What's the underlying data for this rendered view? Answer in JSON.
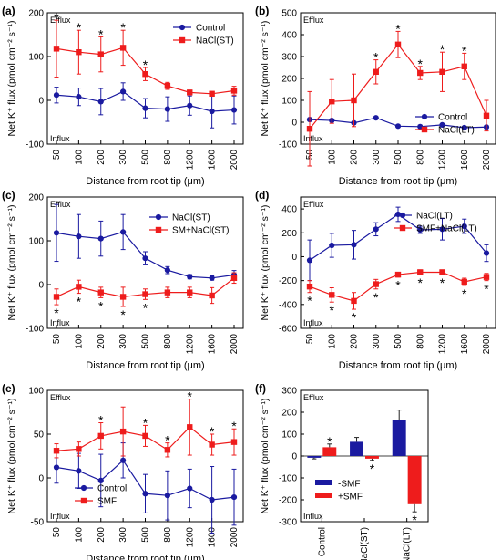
{
  "figure_title": "",
  "colors": {
    "blue": "#1a1aa0",
    "red": "#ee1c1c",
    "axis": "#000000"
  },
  "chart_data": [
    {
      "id": "a",
      "type": "line",
      "panel_label": "(a)",
      "xlabel": "Distance from root tip (μm)",
      "ylabel": "Net K⁺ flux (pmol cm⁻² s⁻¹)",
      "categories": [
        "50",
        "100",
        "200",
        "300",
        "500",
        "800",
        "1200",
        "1600",
        "2000"
      ],
      "ylim": [
        -100,
        200
      ],
      "yticks": [
        -100,
        0,
        100,
        200
      ],
      "top_note": "Efflux",
      "bottom_note": "Influx",
      "legend_position": "top-right",
      "series": [
        {
          "name": "Control",
          "color": "#1a1aa0",
          "marker": "circle",
          "values": [
            12,
            8,
            -3,
            20,
            -18,
            -20,
            -12,
            -25,
            -22
          ],
          "errors": [
            18,
            20,
            30,
            20,
            22,
            28,
            22,
            38,
            32
          ],
          "stars": [
            false,
            false,
            false,
            false,
            false,
            false,
            false,
            false,
            false
          ]
        },
        {
          "name": "NaCl(ST)",
          "color": "#ee1c1c",
          "marker": "square",
          "values": [
            118,
            110,
            105,
            120,
            60,
            33,
            18,
            15,
            22
          ],
          "errors": [
            65,
            50,
            40,
            40,
            15,
            8,
            5,
            5,
            10
          ],
          "stars": [
            true,
            true,
            true,
            true,
            true,
            false,
            false,
            false,
            false
          ]
        }
      ]
    },
    {
      "id": "b",
      "type": "line",
      "panel_label": "(b)",
      "xlabel": "Distance from root tip (μm)",
      "ylabel": "Net K⁺ flux (pmol cm⁻² s⁻¹)",
      "categories": [
        "50",
        "100",
        "200",
        "300",
        "500",
        "800",
        "1200",
        "1600",
        "2000"
      ],
      "ylim": [
        -100,
        500
      ],
      "yticks": [
        -100,
        0,
        100,
        200,
        300,
        400,
        500
      ],
      "top_note": "Efflux",
      "bottom_note": "Influx",
      "legend_position": "bottom-right",
      "series": [
        {
          "name": "Control",
          "color": "#1a1aa0",
          "marker": "circle",
          "values": [
            12,
            8,
            -3,
            20,
            -18,
            -20,
            -12,
            -25,
            -22
          ],
          "errors": [
            0,
            0,
            0,
            0,
            0,
            0,
            0,
            0,
            0
          ],
          "stars": [
            false,
            false,
            false,
            false,
            false,
            false,
            false,
            false,
            false
          ]
        },
        {
          "name": "NaCl(LT)",
          "color": "#ee1c1c",
          "marker": "square",
          "values": [
            -30,
            95,
            100,
            230,
            355,
            225,
            230,
            255,
            30
          ],
          "errors": [
            170,
            100,
            120,
            55,
            60,
            30,
            90,
            60,
            70
          ],
          "stars": [
            false,
            false,
            false,
            true,
            true,
            true,
            true,
            true,
            false
          ]
        }
      ]
    },
    {
      "id": "c",
      "type": "line",
      "panel_label": "(c)",
      "xlabel": "Distance from root tip (μm)",
      "ylabel": "Net K⁺ flux (pmol cm⁻² s⁻¹)",
      "categories": [
        "50",
        "100",
        "200",
        "300",
        "500",
        "800",
        "1200",
        "1600",
        "2000"
      ],
      "ylim": [
        -100,
        200
      ],
      "yticks": [
        -100,
        0,
        100,
        200
      ],
      "top_note": "Efflux",
      "bottom_note": "Influx",
      "legend_position": "top-right",
      "series": [
        {
          "name": "NaCl(ST)",
          "color": "#1a1aa0",
          "marker": "circle",
          "values": [
            118,
            110,
            105,
            120,
            60,
            33,
            18,
            15,
            22
          ],
          "errors": [
            65,
            50,
            40,
            40,
            15,
            8,
            5,
            5,
            10
          ],
          "stars": [
            false,
            false,
            false,
            false,
            false,
            false,
            false,
            false,
            false
          ]
        },
        {
          "name": "SM+NaCl(ST)",
          "color": "#ee1c1c",
          "marker": "square",
          "values": [
            -28,
            -5,
            -18,
            -28,
            -22,
            -18,
            -18,
            -25,
            15
          ],
          "errors": [
            18,
            15,
            12,
            22,
            12,
            12,
            12,
            18,
            12
          ],
          "stars": [
            true,
            true,
            true,
            true,
            true,
            false,
            false,
            false,
            false
          ]
        }
      ]
    },
    {
      "id": "d",
      "type": "line",
      "panel_label": "(d)",
      "xlabel": "Distance from root tip (μm)",
      "ylabel": "Net K⁺ flux (pmol cm⁻² s⁻¹)",
      "categories": [
        "50",
        "100",
        "200",
        "300",
        "500",
        "800",
        "1200",
        "1600",
        "2000"
      ],
      "ylim": [
        -600,
        500
      ],
      "yticks": [
        -600,
        -400,
        -200,
        0,
        200,
        400
      ],
      "top_note": "Efflux",
      "bottom_note": "Influx",
      "legend_position": "top-right",
      "series": [
        {
          "name": "NaCl(LT)",
          "color": "#1a1aa0",
          "marker": "circle",
          "values": [
            -30,
            95,
            100,
            230,
            355,
            225,
            230,
            255,
            30
          ],
          "errors": [
            170,
            100,
            120,
            55,
            60,
            30,
            90,
            60,
            70
          ],
          "stars": [
            false,
            false,
            false,
            false,
            false,
            false,
            false,
            false,
            false
          ]
        },
        {
          "name": "SMF+NaCl(LT)",
          "color": "#ee1c1c",
          "marker": "square",
          "values": [
            -250,
            -320,
            -370,
            -230,
            -150,
            -130,
            -130,
            -210,
            -170
          ],
          "errors": [
            50,
            60,
            70,
            40,
            20,
            20,
            20,
            30,
            30
          ],
          "stars": [
            true,
            true,
            true,
            true,
            true,
            true,
            true,
            true,
            true
          ]
        }
      ]
    },
    {
      "id": "e",
      "type": "line",
      "panel_label": "(e)",
      "xlabel": "Distance from root tip (μm)",
      "ylabel": "Net K⁺ flux (pmol cm⁻² s⁻¹)",
      "categories": [
        "50",
        "100",
        "200",
        "300",
        "500",
        "800",
        "1200",
        "1600",
        "2000"
      ],
      "ylim": [
        -50,
        100
      ],
      "yticks": [
        -50,
        0,
        50,
        100
      ],
      "top_note": "Efflux",
      "bottom_note": "Influx",
      "legend_position": "bottom-left",
      "series": [
        {
          "name": "Control",
          "color": "#1a1aa0",
          "marker": "circle",
          "values": [
            12,
            8,
            -3,
            20,
            -18,
            -20,
            -12,
            -25,
            -22
          ],
          "errors": [
            18,
            20,
            30,
            20,
            22,
            28,
            22,
            38,
            32
          ],
          "stars": [
            false,
            false,
            false,
            false,
            false,
            false,
            false,
            false,
            false
          ]
        },
        {
          "name": "SMF",
          "color": "#ee1c1c",
          "marker": "square",
          "values": [
            31,
            33,
            48,
            53,
            48,
            32,
            58,
            38,
            41
          ],
          "errors": [
            8,
            8,
            15,
            28,
            12,
            8,
            32,
            12,
            15
          ],
          "stars": [
            false,
            false,
            true,
            false,
            true,
            true,
            true,
            true,
            true
          ]
        }
      ]
    },
    {
      "id": "f",
      "type": "bar",
      "panel_label": "(f)",
      "xlabel": "",
      "ylabel": "Net K⁺ flux (pmol cm⁻² s⁻¹)",
      "categories": [
        "Control",
        "NaCl(ST)",
        "NaCl(LT)"
      ],
      "ylim": [
        -300,
        300
      ],
      "yticks": [
        -300,
        -200,
        -100,
        0,
        100,
        200,
        300
      ],
      "top_note": "Efflux",
      "bottom_note": "Influx",
      "legend_position": "bottom-left",
      "series": [
        {
          "name": "-SMF",
          "color": "#1a1aa0",
          "values": [
            -8,
            65,
            165
          ],
          "errors": [
            5,
            20,
            45
          ],
          "stars": [
            false,
            false,
            false
          ]
        },
        {
          "name": "+SMF",
          "color": "#ee1c1c",
          "values": [
            40,
            -12,
            -220
          ],
          "errors": [
            15,
            8,
            35
          ],
          "stars": [
            true,
            true,
            true
          ]
        }
      ]
    }
  ]
}
